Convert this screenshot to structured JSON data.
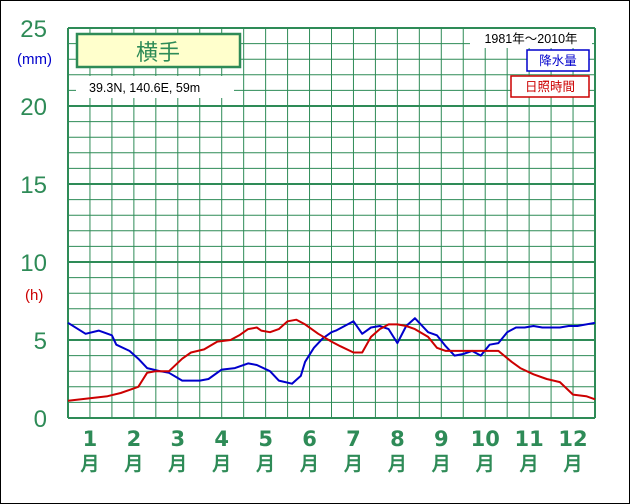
{
  "chart_data": {
    "type": "line",
    "station": "横手",
    "location_text": "39.3N, 140.6E, 59m",
    "period": "1981年～2010年",
    "unit_precip": "(mm)",
    "unit_sun": "(h)",
    "yticks": [
      "0",
      "5",
      "10",
      "15",
      "20",
      "25"
    ],
    "ylim": [
      0,
      25
    ],
    "months": [
      "1",
      "2",
      "3",
      "4",
      "5",
      "6",
      "7",
      "8",
      "9",
      "10",
      "11",
      "12"
    ],
    "month_suffix": "月",
    "grid": true,
    "legend_position": "top-right",
    "series": [
      {
        "name": "降水量",
        "color": "#0000cc",
        "x": [
          0.0,
          0.4,
          0.7,
          1.0,
          1.1,
          1.4,
          1.6,
          1.8,
          2.1,
          2.3,
          2.6,
          3.0,
          3.2,
          3.5,
          3.8,
          4.1,
          4.3,
          4.6,
          4.8,
          5.1,
          5.3,
          5.4,
          5.6,
          5.8,
          6.0,
          6.1,
          6.5,
          6.7,
          6.9,
          7.1,
          7.3,
          7.5,
          7.7,
          7.9,
          8.0,
          8.2,
          8.4,
          8.6,
          8.8,
          9.0,
          9.2,
          9.4,
          9.6,
          9.8,
          10.0,
          10.2,
          10.4,
          10.6,
          10.8,
          11.0,
          11.2,
          11.4,
          11.6,
          12.0
        ],
        "values": [
          6.1,
          5.4,
          5.6,
          5.3,
          4.7,
          4.3,
          3.8,
          3.2,
          3.0,
          2.9,
          2.4,
          2.4,
          2.5,
          3.1,
          3.2,
          3.5,
          3.4,
          3.0,
          2.4,
          2.2,
          2.7,
          3.6,
          4.5,
          5.1,
          5.5,
          5.6,
          6.2,
          5.4,
          5.8,
          5.9,
          5.7,
          4.8,
          5.9,
          6.4,
          6.1,
          5.5,
          5.3,
          4.6,
          4.0,
          4.1,
          4.3,
          4.0,
          4.7,
          4.8,
          5.5,
          5.8,
          5.8,
          5.9,
          5.8,
          5.8,
          5.8,
          5.9,
          5.9,
          6.1
        ]
      },
      {
        "name": "日照時間",
        "color": "#cc0000",
        "x": [
          0.0,
          0.3,
          0.6,
          0.9,
          1.2,
          1.4,
          1.6,
          1.8,
          2.0,
          2.3,
          2.6,
          2.8,
          3.1,
          3.4,
          3.7,
          3.9,
          4.1,
          4.3,
          4.4,
          4.6,
          4.8,
          5.0,
          5.2,
          5.4,
          5.7,
          6.0,
          6.2,
          6.5,
          6.7,
          6.9,
          7.1,
          7.3,
          7.5,
          7.7,
          7.9,
          8.2,
          8.4,
          8.6,
          8.9,
          9.2,
          9.5,
          9.8,
          10.1,
          10.3,
          10.6,
          10.9,
          11.2,
          11.5,
          11.8,
          12.0
        ],
        "values": [
          1.1,
          1.2,
          1.3,
          1.4,
          1.6,
          1.8,
          2.0,
          2.9,
          3.0,
          3.0,
          3.8,
          4.2,
          4.4,
          4.9,
          5.0,
          5.3,
          5.7,
          5.8,
          5.6,
          5.5,
          5.7,
          6.2,
          6.3,
          6.0,
          5.4,
          4.9,
          4.6,
          4.2,
          4.2,
          5.2,
          5.7,
          6.0,
          6.0,
          5.9,
          5.7,
          5.2,
          4.5,
          4.3,
          4.3,
          4.3,
          4.3,
          4.3,
          3.6,
          3.2,
          2.8,
          2.5,
          2.3,
          1.5,
          1.4,
          1.2
        ]
      }
    ]
  }
}
